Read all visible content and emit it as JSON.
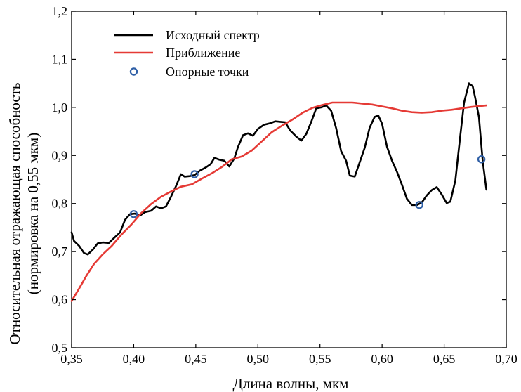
{
  "chart_data": {
    "type": "line",
    "xlabel": "Длина волны, мкм",
    "ylabel_line1": "Относительная отражающая способность",
    "ylabel_line2": "(нормировка на 0,55 мкм)",
    "xlim": [
      0.35,
      0.7
    ],
    "ylim": [
      0.5,
      1.2
    ],
    "x_ticks": [
      0.35,
      0.4,
      0.45,
      0.5,
      0.55,
      0.6,
      0.65,
      0.7
    ],
    "x_tick_labels": [
      "0,35",
      "0,40",
      "0,45",
      "0,50",
      "0,55",
      "0,60",
      "0,65",
      "0,70"
    ],
    "y_ticks": [
      0.5,
      0.6,
      0.7,
      0.8,
      0.9,
      1.0,
      1.1,
      1.2
    ],
    "y_tick_labels": [
      "0,5",
      "0,6",
      "0,7",
      "0,8",
      "0,9",
      "1,0",
      "1,1",
      "1,2"
    ],
    "grid": false,
    "legend_position": "top-left",
    "series": [
      {
        "name": "Исходный спектр",
        "kind": "line",
        "color": "#000000",
        "points": [
          [
            0.35,
            0.74
          ],
          [
            0.352,
            0.722
          ],
          [
            0.356,
            0.712
          ],
          [
            0.36,
            0.697
          ],
          [
            0.363,
            0.694
          ],
          [
            0.367,
            0.704
          ],
          [
            0.371,
            0.717
          ],
          [
            0.375,
            0.719
          ],
          [
            0.38,
            0.718
          ],
          [
            0.384,
            0.728
          ],
          [
            0.389,
            0.74
          ],
          [
            0.393,
            0.766
          ],
          [
            0.397,
            0.778
          ],
          [
            0.401,
            0.779
          ],
          [
            0.405,
            0.775
          ],
          [
            0.409,
            0.782
          ],
          [
            0.414,
            0.785
          ],
          [
            0.418,
            0.794
          ],
          [
            0.422,
            0.79
          ],
          [
            0.426,
            0.794
          ],
          [
            0.43,
            0.814
          ],
          [
            0.434,
            0.836
          ],
          [
            0.438,
            0.861
          ],
          [
            0.441,
            0.856
          ],
          [
            0.445,
            0.857
          ],
          [
            0.449,
            0.859
          ],
          [
            0.453,
            0.868
          ],
          [
            0.458,
            0.875
          ],
          [
            0.462,
            0.882
          ],
          [
            0.465,
            0.895
          ],
          [
            0.469,
            0.891
          ],
          [
            0.473,
            0.889
          ],
          [
            0.477,
            0.877
          ],
          [
            0.481,
            0.894
          ],
          [
            0.484,
            0.918
          ],
          [
            0.488,
            0.942
          ],
          [
            0.492,
            0.946
          ],
          [
            0.496,
            0.941
          ],
          [
            0.5,
            0.955
          ],
          [
            0.505,
            0.964
          ],
          [
            0.51,
            0.967
          ],
          [
            0.514,
            0.971
          ],
          [
            0.518,
            0.97
          ],
          [
            0.522,
            0.969
          ],
          [
            0.526,
            0.952
          ],
          [
            0.531,
            0.939
          ],
          [
            0.535,
            0.931
          ],
          [
            0.539,
            0.945
          ],
          [
            0.543,
            0.97
          ],
          [
            0.547,
            0.998
          ],
          [
            0.551,
            1.0
          ],
          [
            0.555,
            1.004
          ],
          [
            0.559,
            0.993
          ],
          [
            0.563,
            0.957
          ],
          [
            0.567,
            0.909
          ],
          [
            0.571,
            0.889
          ],
          [
            0.574,
            0.858
          ],
          [
            0.578,
            0.856
          ],
          [
            0.582,
            0.886
          ],
          [
            0.586,
            0.916
          ],
          [
            0.59,
            0.958
          ],
          [
            0.594,
            0.98
          ],
          [
            0.597,
            0.983
          ],
          [
            0.6,
            0.966
          ],
          [
            0.604,
            0.918
          ],
          [
            0.608,
            0.889
          ],
          [
            0.612,
            0.866
          ],
          [
            0.616,
            0.839
          ],
          [
            0.62,
            0.81
          ],
          [
            0.624,
            0.797
          ],
          [
            0.628,
            0.797
          ],
          [
            0.632,
            0.802
          ],
          [
            0.636,
            0.817
          ],
          [
            0.64,
            0.828
          ],
          [
            0.644,
            0.834
          ],
          [
            0.648,
            0.819
          ],
          [
            0.652,
            0.801
          ],
          [
            0.655,
            0.804
          ],
          [
            0.659,
            0.848
          ],
          [
            0.663,
            0.942
          ],
          [
            0.666,
            1.01
          ],
          [
            0.67,
            1.05
          ],
          [
            0.673,
            1.044
          ],
          [
            0.675,
            1.02
          ],
          [
            0.678,
            0.98
          ],
          [
            0.681,
            0.889
          ],
          [
            0.684,
            0.829
          ]
        ]
      },
      {
        "name": "Приближение",
        "kind": "line",
        "color": "#e53a35",
        "points": [
          [
            0.35,
            0.597
          ],
          [
            0.356,
            0.623
          ],
          [
            0.362,
            0.65
          ],
          [
            0.368,
            0.674
          ],
          [
            0.375,
            0.694
          ],
          [
            0.382,
            0.711
          ],
          [
            0.39,
            0.735
          ],
          [
            0.398,
            0.756
          ],
          [
            0.406,
            0.78
          ],
          [
            0.414,
            0.799
          ],
          [
            0.422,
            0.814
          ],
          [
            0.43,
            0.825
          ],
          [
            0.438,
            0.835
          ],
          [
            0.447,
            0.84
          ],
          [
            0.455,
            0.852
          ],
          [
            0.463,
            0.863
          ],
          [
            0.471,
            0.876
          ],
          [
            0.479,
            0.892
          ],
          [
            0.487,
            0.898
          ],
          [
            0.495,
            0.91
          ],
          [
            0.503,
            0.929
          ],
          [
            0.511,
            0.948
          ],
          [
            0.52,
            0.963
          ],
          [
            0.528,
            0.975
          ],
          [
            0.536,
            0.989
          ],
          [
            0.544,
            0.999
          ],
          [
            0.552,
            1.005
          ],
          [
            0.56,
            1.01
          ],
          [
            0.568,
            1.01
          ],
          [
            0.576,
            1.01
          ],
          [
            0.584,
            1.008
          ],
          [
            0.592,
            1.006
          ],
          [
            0.6,
            1.002
          ],
          [
            0.608,
            0.998
          ],
          [
            0.616,
            0.993
          ],
          [
            0.624,
            0.99
          ],
          [
            0.632,
            0.989
          ],
          [
            0.64,
            0.99
          ],
          [
            0.648,
            0.993
          ],
          [
            0.656,
            0.995
          ],
          [
            0.664,
            0.998
          ],
          [
            0.672,
            1.001
          ],
          [
            0.684,
            1.004
          ]
        ]
      },
      {
        "name": "Опорные точки",
        "kind": "markers",
        "color": "#2f5fa6",
        "points": [
          [
            0.4,
            0.778
          ],
          [
            0.449,
            0.861
          ],
          [
            0.63,
            0.797
          ],
          [
            0.68,
            0.892
          ]
        ]
      }
    ]
  }
}
